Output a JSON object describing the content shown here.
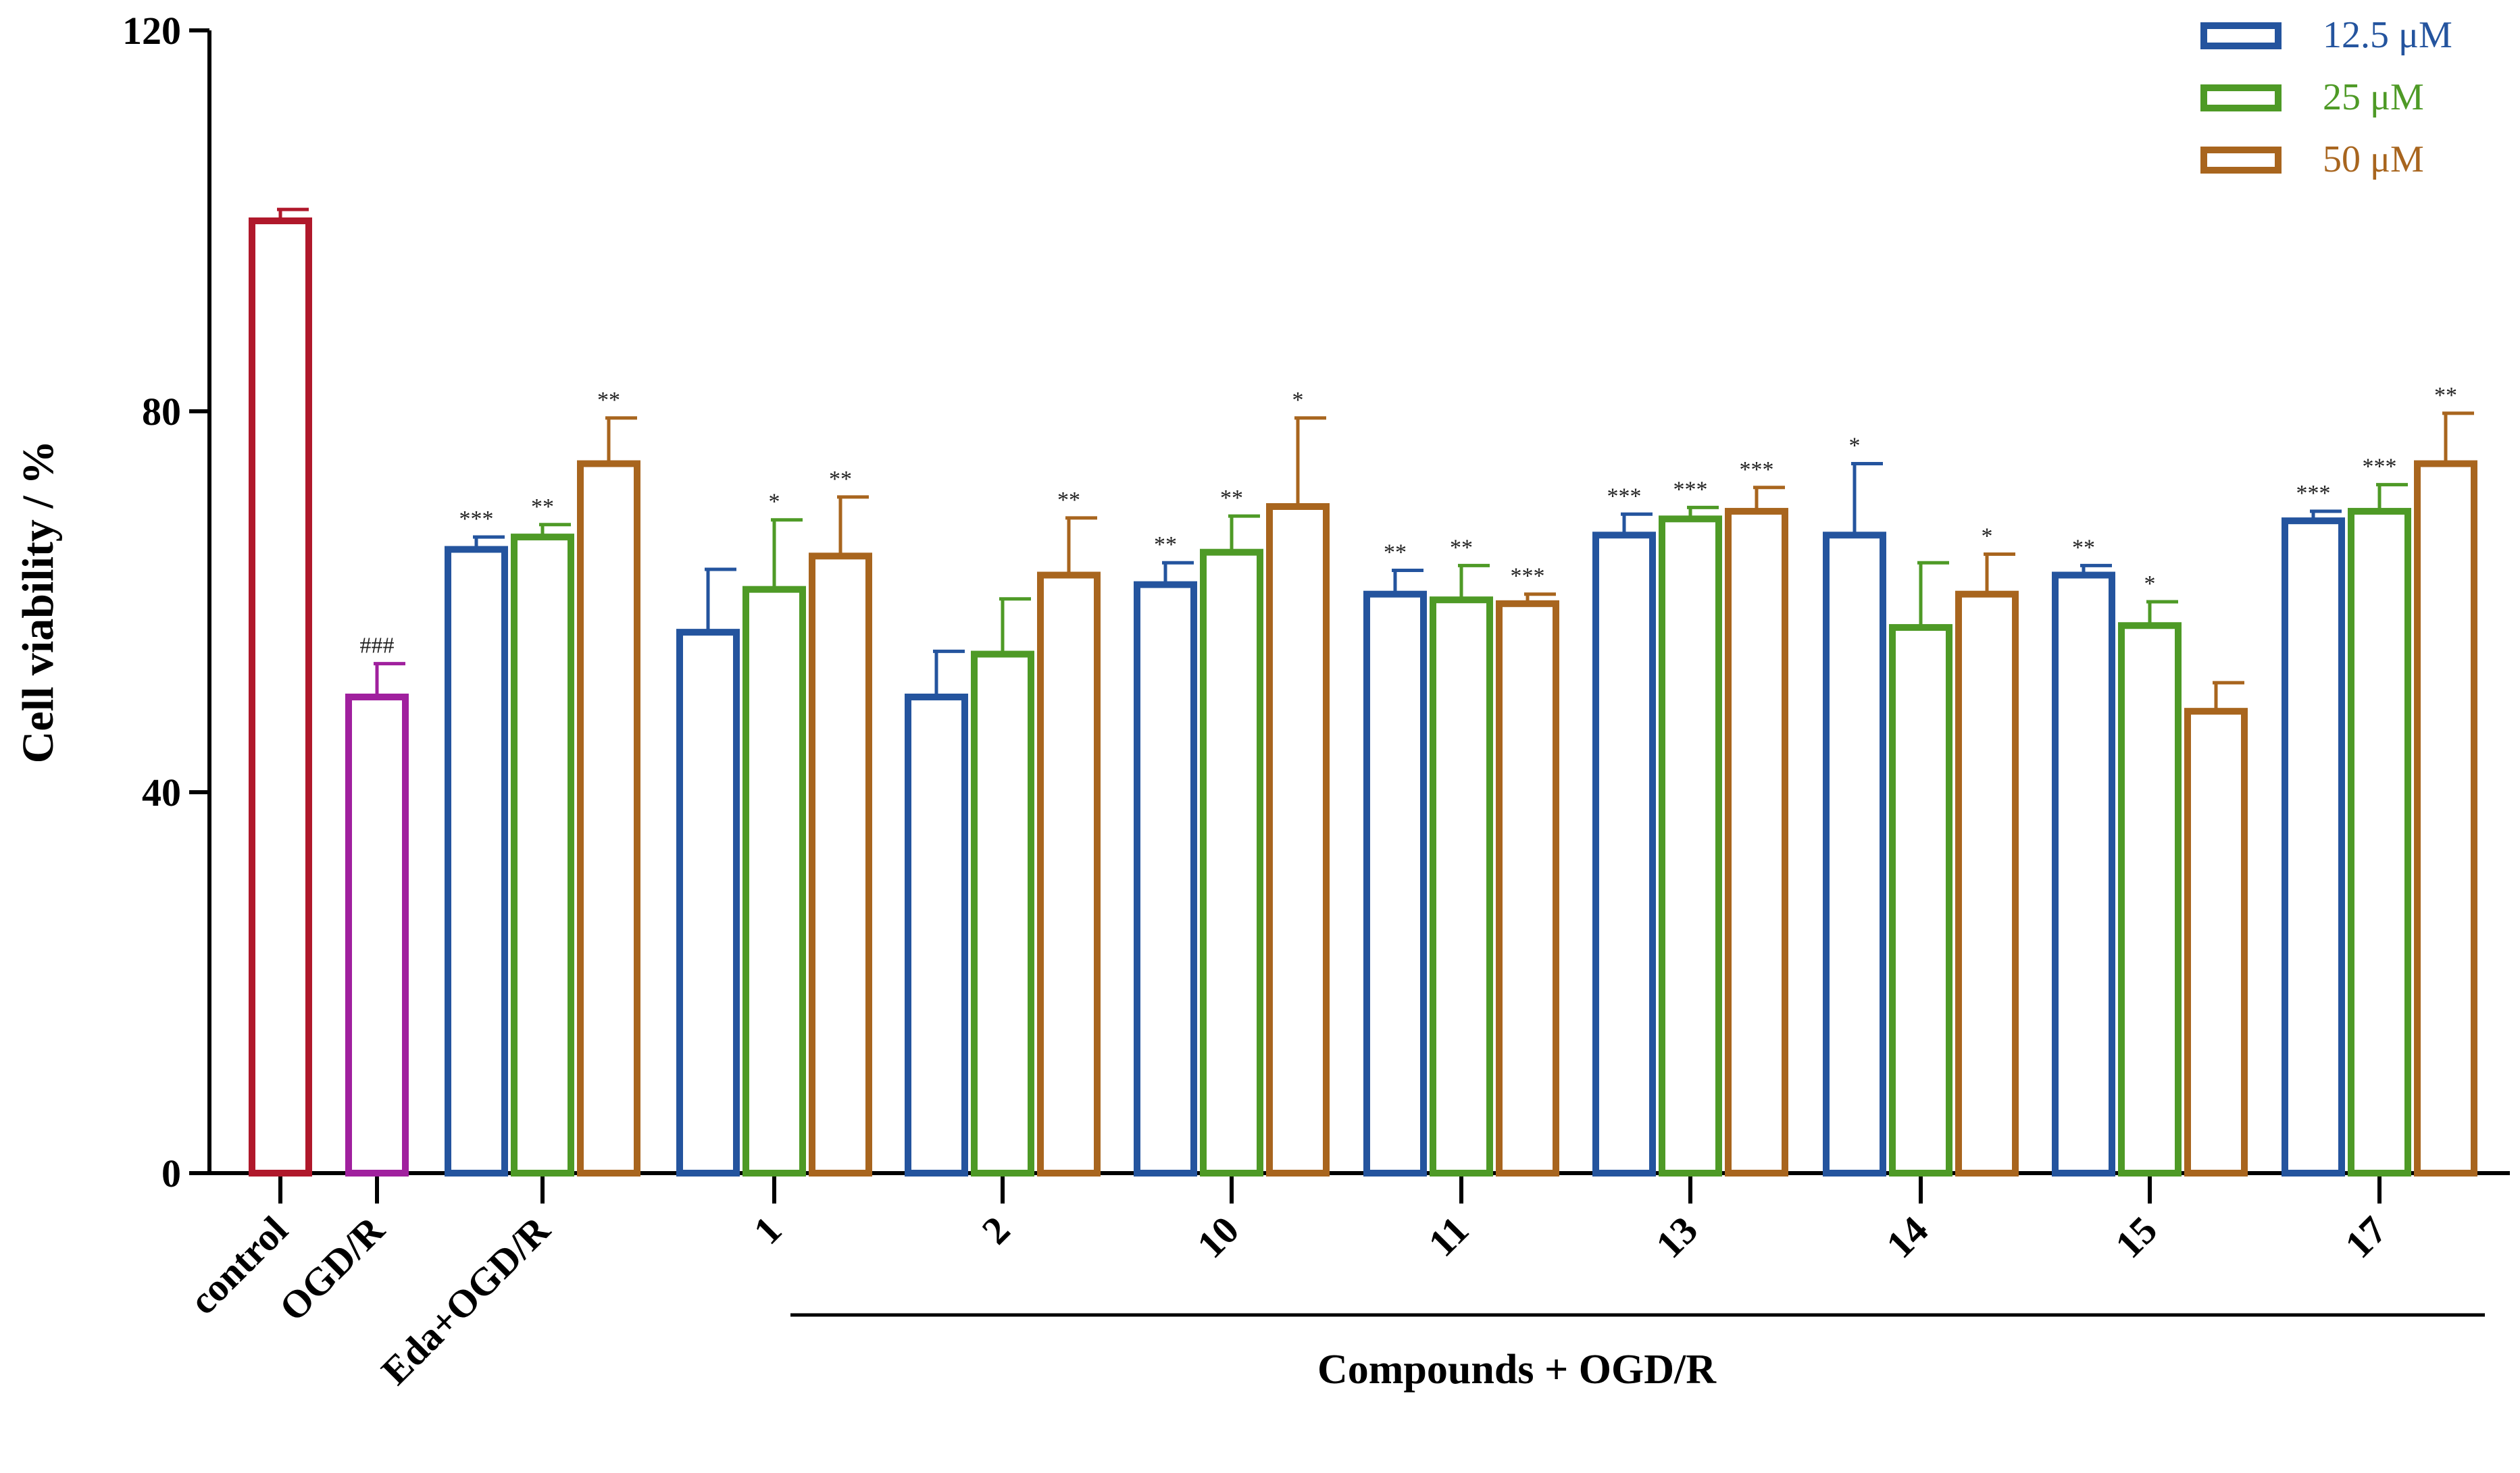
{
  "chart_data": {
    "type": "bar",
    "ylabel": "Cell viability / %",
    "xlabel": "",
    "ylim": [
      0,
      120
    ],
    "yticks": [
      "0",
      "40",
      "80",
      "120"
    ],
    "group_label": "Compounds + OGD/R",
    "colors": {
      "control": "#B0182B",
      "ogdr": "#A0209E",
      "c12_5": "#24549E",
      "c25": "#4E9A26",
      "c50": "#A8651E"
    },
    "legend": [
      {
        "label": "12.5 μM",
        "color": "#24549E"
      },
      {
        "label": "25 μM",
        "color": "#4E9A26"
      },
      {
        "label": "50 μM",
        "color": "#A8651E"
      }
    ],
    "categories": [
      {
        "label": "control",
        "bars": [
          {
            "series": "control",
            "value": 100,
            "error": 1.2,
            "sig": ""
          }
        ]
      },
      {
        "label": "OGD/R",
        "bars": [
          {
            "series": "ogdr",
            "value": 50,
            "error": 3.5,
            "sig": "###"
          }
        ]
      },
      {
        "label": "Eda+OGD/R",
        "bars": [
          {
            "series": "12.5 μM",
            "value": 65.5,
            "error": 1.3,
            "sig": "***"
          },
          {
            "series": "25 μM",
            "value": 66.8,
            "error": 1.3,
            "sig": "**"
          },
          {
            "series": "50 μM",
            "value": 74.5,
            "error": 4.8,
            "sig": "**"
          }
        ]
      },
      {
        "label": "1",
        "bars": [
          {
            "series": "12.5 μM",
            "value": 56.8,
            "error": 6.6,
            "sig": ""
          },
          {
            "series": "25 μM",
            "value": 61.3,
            "error": 7.3,
            "sig": "*"
          },
          {
            "series": "50 μM",
            "value": 64.8,
            "error": 6.2,
            "sig": "**"
          }
        ]
      },
      {
        "label": "2",
        "bars": [
          {
            "series": "12.5 μM",
            "value": 50.0,
            "error": 4.8,
            "sig": ""
          },
          {
            "series": "25 μM",
            "value": 54.5,
            "error": 5.8,
            "sig": ""
          },
          {
            "series": "50 μM",
            "value": 62.8,
            "error": 6.0,
            "sig": "**"
          }
        ]
      },
      {
        "label": "10",
        "bars": [
          {
            "series": "12.5 μM",
            "value": 61.8,
            "error": 2.3,
            "sig": "**"
          },
          {
            "series": "25 μM",
            "value": 65.2,
            "error": 3.8,
            "sig": "**"
          },
          {
            "series": "50 μM",
            "value": 70.0,
            "error": 9.3,
            "sig": "*"
          }
        ]
      },
      {
        "label": "11",
        "bars": [
          {
            "series": "12.5 μM",
            "value": 60.8,
            "error": 2.5,
            "sig": "**"
          },
          {
            "series": "25 μM",
            "value": 60.2,
            "error": 3.6,
            "sig": "**"
          },
          {
            "series": "50 μM",
            "value": 59.8,
            "error": 1.0,
            "sig": "***"
          }
        ]
      },
      {
        "label": "13",
        "bars": [
          {
            "series": "12.5 μM",
            "value": 67.0,
            "error": 2.2,
            "sig": "***"
          },
          {
            "series": "25 μM",
            "value": 68.7,
            "error": 1.2,
            "sig": "***"
          },
          {
            "series": "50 μM",
            "value": 69.5,
            "error": 2.5,
            "sig": "***"
          }
        ]
      },
      {
        "label": "14",
        "bars": [
          {
            "series": "12.5 μM",
            "value": 67.0,
            "error": 7.5,
            "sig": "*"
          },
          {
            "series": "25 μM",
            "value": 57.3,
            "error": 6.8,
            "sig": ""
          },
          {
            "series": "50 μM",
            "value": 60.8,
            "error": 4.2,
            "sig": "*"
          }
        ]
      },
      {
        "label": "15",
        "bars": [
          {
            "series": "12.5 μM",
            "value": 62.8,
            "error": 1.0,
            "sig": "**"
          },
          {
            "series": "25 μM",
            "value": 57.5,
            "error": 2.5,
            "sig": "*"
          },
          {
            "series": "50 μM",
            "value": 48.5,
            "error": 3.0,
            "sig": ""
          }
        ]
      },
      {
        "label": "17",
        "bars": [
          {
            "series": "12.5 μM",
            "value": 68.5,
            "error": 1.0,
            "sig": "***"
          },
          {
            "series": "25 μM",
            "value": 69.5,
            "error": 2.8,
            "sig": "***"
          },
          {
            "series": "50 μM",
            "value": 74.5,
            "error": 5.3,
            "sig": "**"
          }
        ]
      }
    ]
  }
}
